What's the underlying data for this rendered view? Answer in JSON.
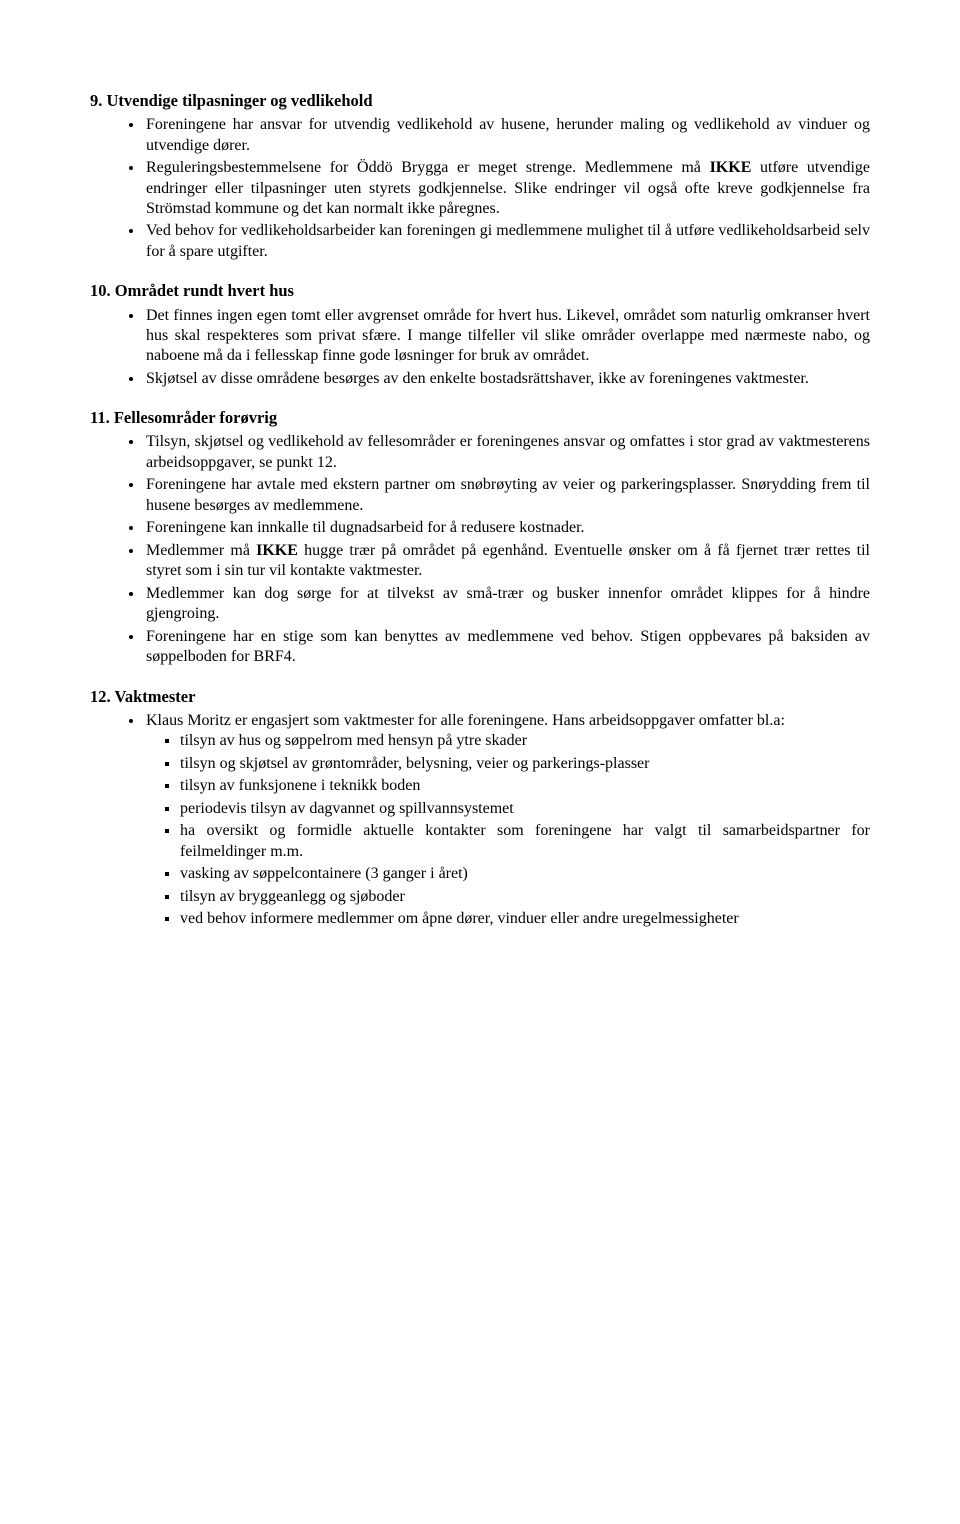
{
  "section9": {
    "heading": "9.  Utvendige tilpasninger og vedlikehold",
    "bullets": [
      {
        "pre": "Foreningene har ansvar for utvendig vedlikehold av husene, herunder maling og vedlikehold av vinduer og utvendige dører."
      },
      {
        "pre": "Reguleringsbestemmelsene for Öddö Brygga er meget strenge. Medlemmene må ",
        "bold": "IKKE",
        "post": " utføre utvendige endringer eller tilpasninger uten styrets godkjennelse. Slike endringer vil også ofte kreve godkjennelse fra Strömstad kommune og det kan normalt ikke påregnes."
      },
      {
        "pre": "Ved behov for vedlikeholdsarbeider kan foreningen gi medlemmene mulighet til å utføre vedlikeholdsarbeid selv for å spare utgifter."
      }
    ]
  },
  "section10": {
    "heading": "10. Området rundt hvert hus",
    "bullets": [
      {
        "pre": "Det finnes ingen egen tomt eller avgrenset område for hvert hus. Likevel, området som naturlig omkranser hvert hus skal respekteres som privat sfære. I mange tilfeller vil slike områder overlappe med nærmeste nabo, og naboene må da i fellesskap finne gode løsninger for bruk av området."
      },
      {
        "pre": "Skjøtsel av disse områdene besørges av den enkelte bostadsrättshaver, ikke av foreningenes vaktmester."
      }
    ]
  },
  "section11": {
    "heading": "11. Fellesområder forøvrig",
    "bullets": [
      {
        "pre": "Tilsyn, skjøtsel og vedlikehold av fellesområder er foreningenes ansvar og omfattes i stor grad av vaktmesterens arbeidsoppgaver, se punkt 12."
      },
      {
        "pre": "Foreningene har avtale med ekstern partner om snøbrøyting av veier og parkeringsplasser. Snørydding frem til husene besørges av medlemmene."
      },
      {
        "pre": "Foreningene kan innkalle til dugnadsarbeid for å redusere kostnader."
      },
      {
        "pre": "Medlemmer må ",
        "bold": "IKKE",
        "post": " hugge trær på området på egenhånd. Eventuelle ønsker om å få fjernet trær rettes til styret som i sin tur vil kontakte vaktmester."
      },
      {
        "pre": "Medlemmer kan dog sørge for at tilvekst av små-trær og busker innenfor området klippes for å hindre gjengroing."
      },
      {
        "pre": "Foreningene har en stige som kan benyttes av medlemmene ved behov. Stigen oppbevares på baksiden av søppelboden for BRF4."
      }
    ]
  },
  "section12": {
    "heading": "12. Vaktmester",
    "bullets": [
      {
        "pre": "Klaus Moritz er engasjert som vaktmester for alle foreningene. Hans arbeidsoppgaver omfatter bl.a:"
      }
    ],
    "subitems": [
      "tilsyn av hus og søppelrom med hensyn på ytre skader",
      "tilsyn og skjøtsel av grøntområder, belysning, veier og parkerings-plasser",
      "tilsyn av funksjonene i teknikk boden",
      "periodevis tilsyn av dagvannet og spillvannsystemet",
      "ha oversikt og formidle aktuelle kontakter som foreningene har valgt til samarbeidspartner for feilmeldinger m.m.",
      "vasking av søppelcontainere (3 ganger i året)",
      "tilsyn av bryggeanlegg og sjøboder",
      "ved behov informere medlemmer om åpne dører, vinduer eller andre uregelmessigheter"
    ]
  }
}
